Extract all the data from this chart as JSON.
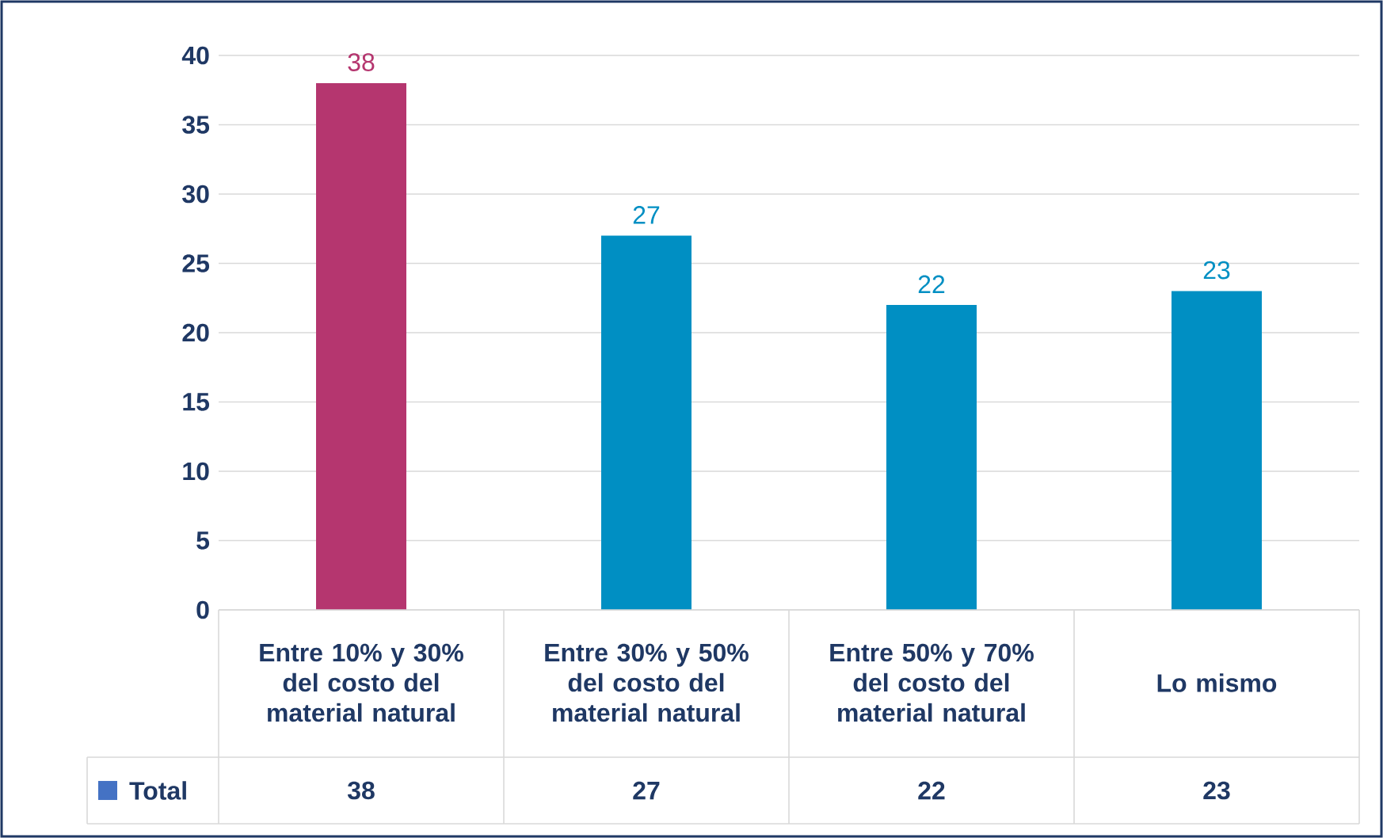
{
  "chart_data": {
    "type": "bar",
    "categories": [
      "Entre 10% y 30% del costo del material natural",
      "Entre 30% y 50% del costo del material natural",
      "Entre 50% y 70% del costo del material natural",
      "Lo mismo"
    ],
    "series": [
      {
        "name": "Total",
        "color": "#4472c4",
        "colors": [
          "#b5366f",
          "#008fc3",
          "#008fc3",
          "#008fc3"
        ],
        "values": [
          38,
          27,
          22,
          23
        ]
      }
    ],
    "annotations": [
      "38",
      "27",
      "22",
      "23"
    ],
    "ylim": [
      0,
      40
    ],
    "yticks": [
      0,
      5,
      10,
      15,
      20,
      25,
      30,
      35,
      40
    ],
    "grid": "y",
    "data_labels": true
  }
}
